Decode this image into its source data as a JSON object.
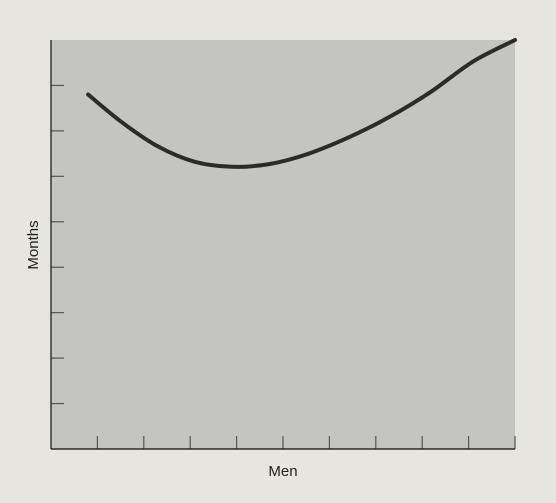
{
  "chart_data": {
    "type": "line",
    "title": "",
    "xlabel": "Men",
    "ylabel": "Months",
    "xlim": [
      0,
      10
    ],
    "ylim": [
      0,
      9
    ],
    "x_ticks": [
      1,
      2,
      3,
      4,
      5,
      6,
      7,
      8,
      9,
      10
    ],
    "y_ticks": [
      1,
      2,
      3,
      4,
      5,
      6,
      7,
      8
    ],
    "tick_labels_shown": false,
    "grid": false,
    "series": [
      {
        "x": [
          0.8,
          1.5,
          2.3,
          3.1,
          3.9,
          4.7,
          5.5,
          6.4,
          7.3,
          8.2,
          9.1,
          10.0
        ],
        "y": [
          7.8,
          7.21,
          6.66,
          6.32,
          6.21,
          6.27,
          6.48,
          6.85,
          7.31,
          7.87,
          8.53,
          9.0
        ]
      }
    ],
    "colors": {
      "background": "#e6e5df",
      "plot_area": "#c4c5c0",
      "line": "#2b2b2b",
      "axis": "#2b2b2b",
      "tick": "#555555"
    }
  }
}
